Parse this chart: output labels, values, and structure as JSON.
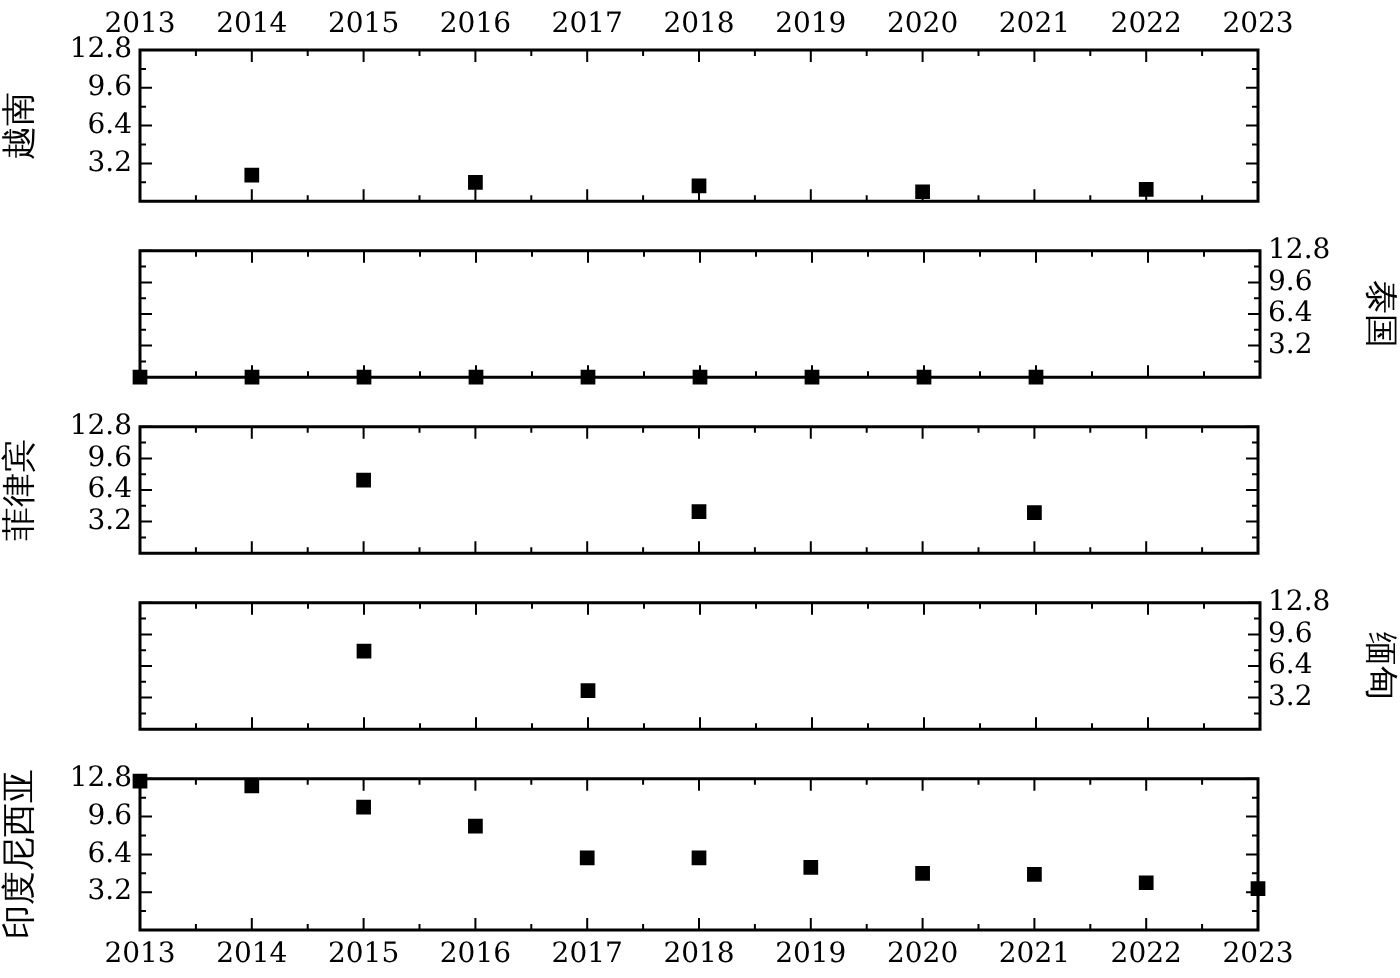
{
  "chart_data": [
    {
      "type": "scatter",
      "ylabel": "越南",
      "x": [
        2014,
        2016,
        2018,
        2020,
        2022
      ],
      "series": [
        {
          "color": "#000000",
          "values": [
            2.2,
            1.6,
            1.3,
            0.8,
            1.0
          ]
        }
      ],
      "xlim": [
        2013,
        2023
      ],
      "xticks": [
        2013,
        2014,
        2015,
        2016,
        2017,
        2018,
        2019,
        2020,
        2021,
        2022,
        2023
      ],
      "x2lim": [
        2013,
        2023
      ],
      "x2ticks": [
        2013,
        2014,
        2015,
        2016,
        2017,
        2018,
        2019,
        2020,
        2021,
        2022,
        2023
      ],
      "ylim": [
        0,
        12.8
      ],
      "yticks": [
        3.2,
        6.4,
        9.6,
        12.8
      ],
      "marker": "square",
      "legend": false,
      "grid": false,
      "tick_labels": "y"
    },
    {
      "type": "scatter",
      "y2label": "泰国",
      "x": [
        2013,
        2014,
        2015,
        2016,
        2017,
        2018,
        2019,
        2020,
        2021
      ],
      "series": [
        {
          "color": "#000000",
          "axis": "y2",
          "values": [
            0,
            0,
            0,
            0,
            0,
            0,
            0,
            0,
            0
          ]
        }
      ],
      "xlim": [
        2013,
        2023
      ],
      "xticks": [
        2013,
        2014,
        2015,
        2016,
        2017,
        2018,
        2019,
        2020,
        2021,
        2022,
        2023
      ],
      "y2lim": [
        0,
        12.8
      ],
      "y2ticks": [
        3.2,
        6.4,
        9.6,
        12.8
      ],
      "marker": "square",
      "legend": false,
      "grid": false,
      "tick_labels": "y"
    },
    {
      "type": "scatter",
      "ylabel": "菲律宾",
      "x": [
        2015,
        2018,
        2021
      ],
      "series": [
        {
          "color": "#000000",
          "values": [
            7.4,
            4.2,
            4.1
          ]
        }
      ],
      "xlim": [
        2013,
        2023
      ],
      "xticks": [
        2013,
        2014,
        2015,
        2016,
        2017,
        2018,
        2019,
        2020,
        2021,
        2022,
        2023
      ],
      "ylim": [
        0,
        12.8
      ],
      "yticks": [
        3.2,
        6.4,
        9.6,
        12.8
      ],
      "marker": "square",
      "legend": false,
      "grid": false,
      "tick_labels": "y"
    },
    {
      "type": "scatter",
      "y2label": "缅甸",
      "x": [
        2015,
        2017
      ],
      "series": [
        {
          "color": "#000000",
          "axis": "y2",
          "values": [
            7.9,
            3.9
          ]
        }
      ],
      "xlim": [
        2013,
        2023
      ],
      "xticks": [
        2013,
        2014,
        2015,
        2016,
        2017,
        2018,
        2019,
        2020,
        2021,
        2022,
        2023
      ],
      "y2lim": [
        0,
        12.8
      ],
      "y2ticks": [
        3.2,
        6.4,
        9.6,
        12.8
      ],
      "marker": "square",
      "legend": false,
      "grid": false,
      "tick_labels": "y"
    },
    {
      "type": "scatter",
      "ylabel": "印度尼西亚",
      "x": [
        2013,
        2014,
        2015,
        2016,
        2017,
        2018,
        2019,
        2020,
        2021,
        2022,
        2023
      ],
      "series": [
        {
          "color": "#000000",
          "values": [
            12.6,
            12.2,
            10.4,
            8.8,
            6.1,
            6.1,
            5.3,
            4.8,
            4.7,
            4.0,
            3.5
          ]
        }
      ],
      "xlim": [
        2013,
        2023
      ],
      "xticks": [
        2013,
        2014,
        2015,
        2016,
        2017,
        2018,
        2019,
        2020,
        2021,
        2022,
        2023
      ],
      "ylim": [
        0,
        12.8
      ],
      "yticks": [
        3.2,
        6.4,
        9.6,
        12.8
      ],
      "marker": "square",
      "legend": false,
      "grid": false
    }
  ]
}
